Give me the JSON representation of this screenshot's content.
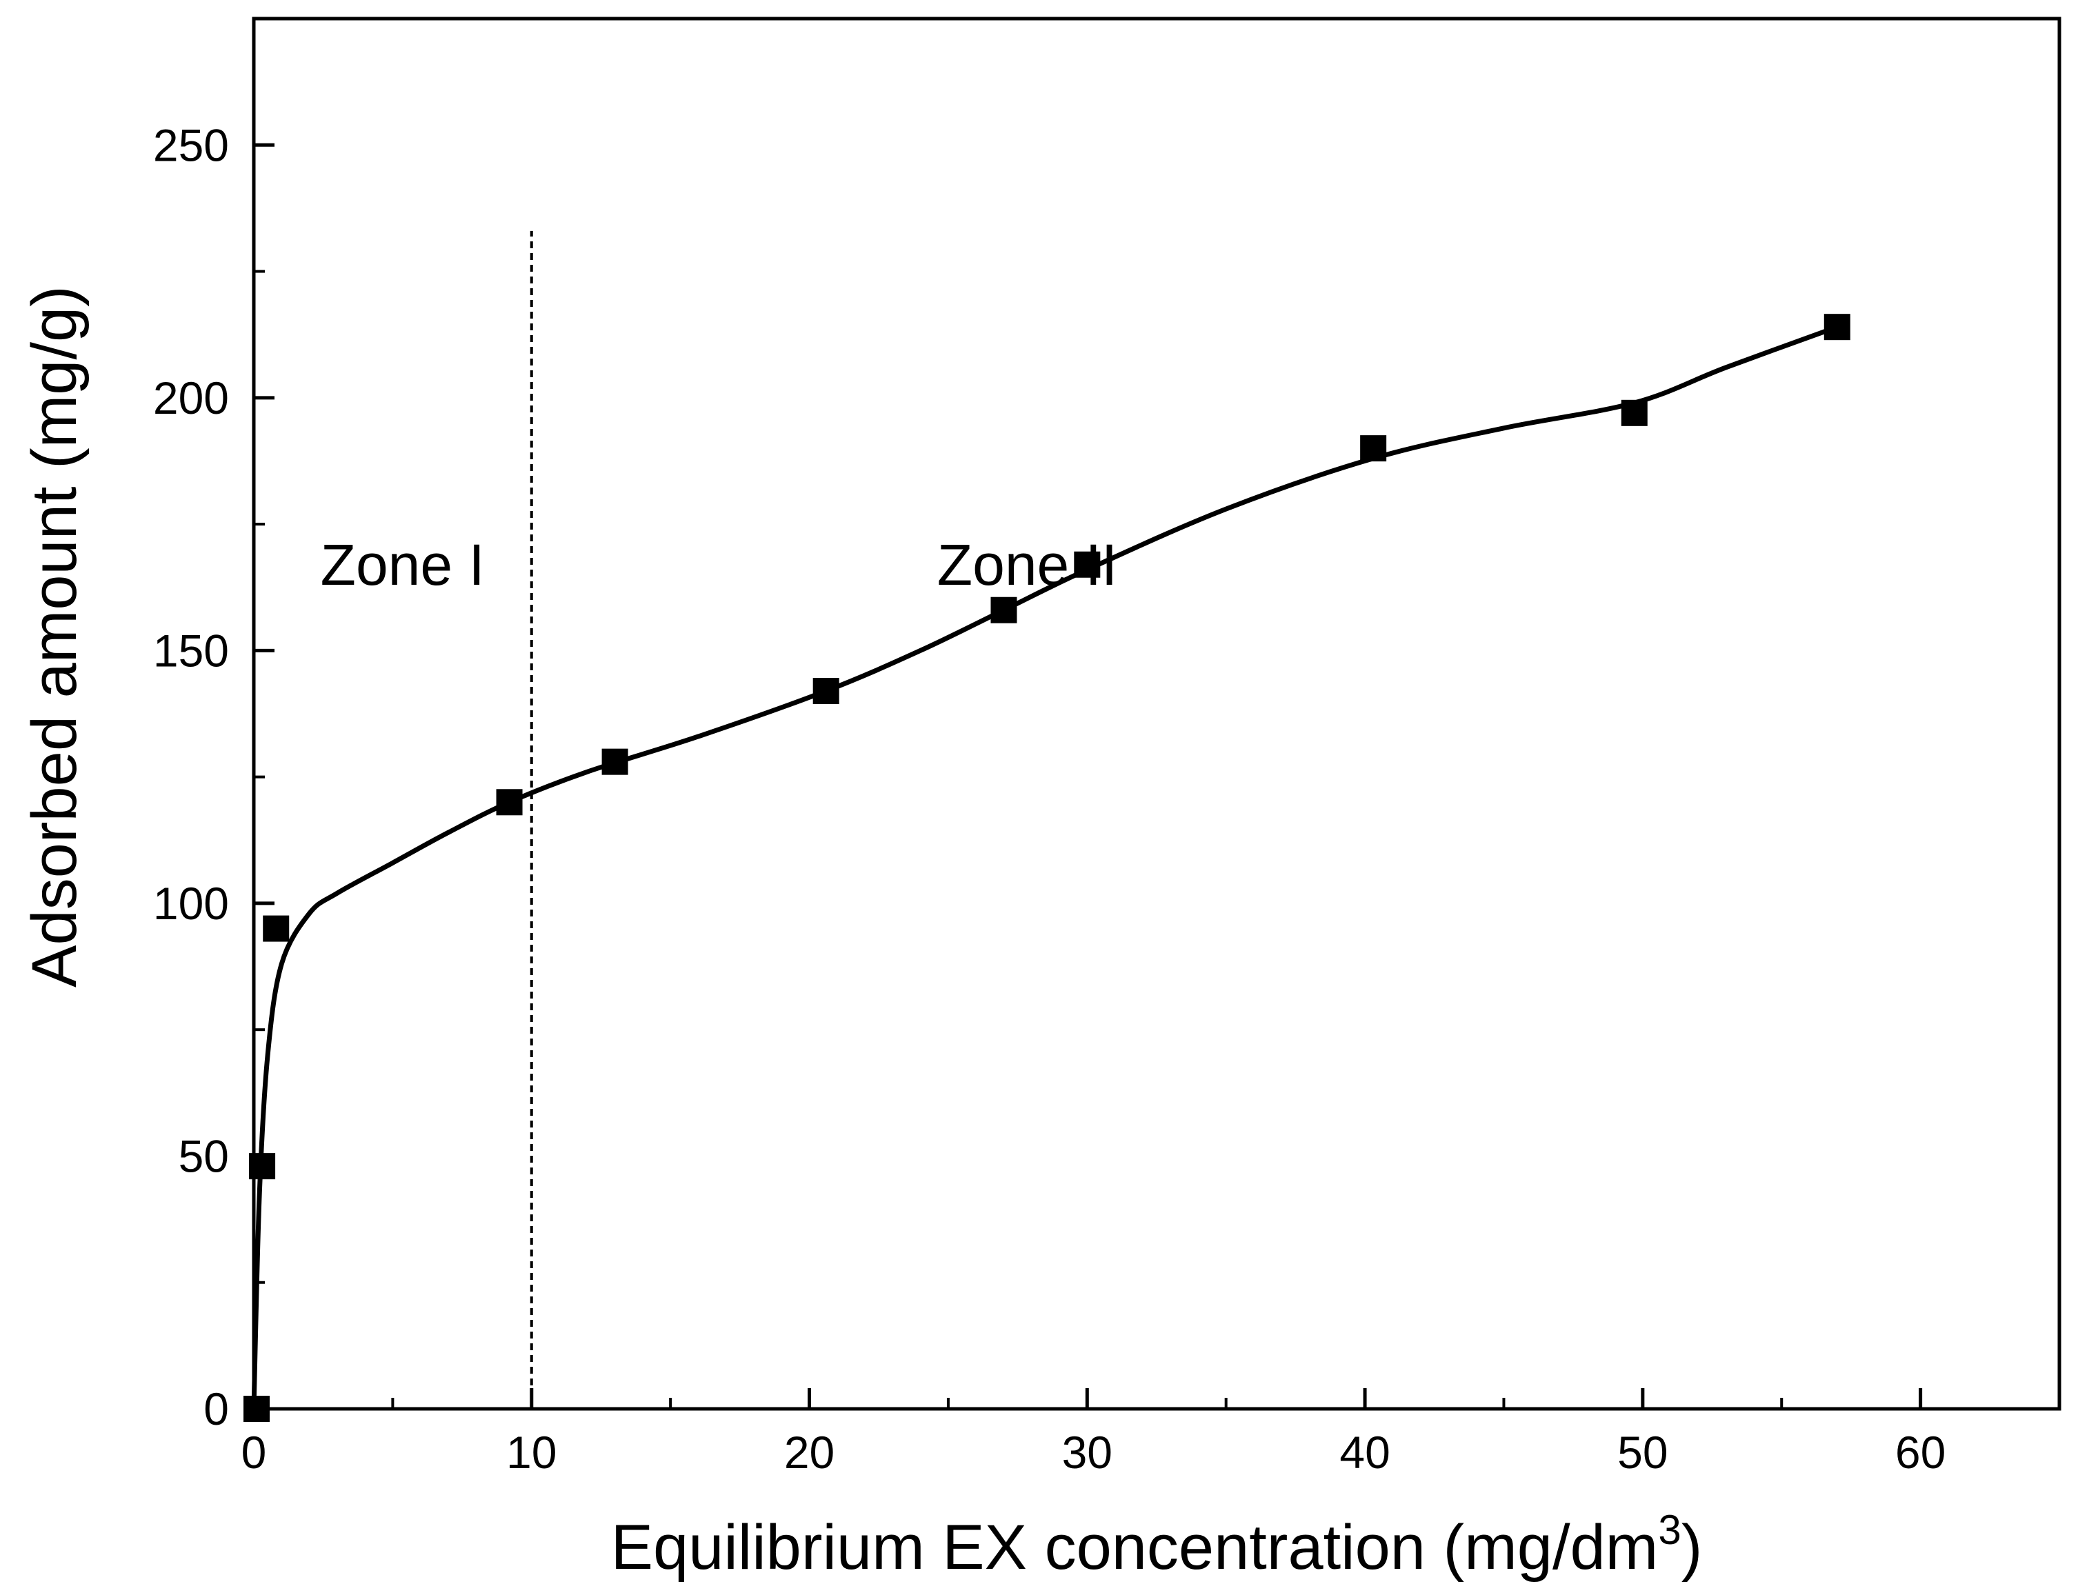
{
  "chart_data": {
    "type": "scatter",
    "title": "",
    "xlabel": "Equilibrium EX concentration (mg/dm",
    "xlabel_sup": "3",
    "xlabel_tail": ")",
    "ylabel": "Adsorbed amount (mg/g)",
    "xlim": [
      0,
      65
    ],
    "ylim": [
      0,
      275
    ],
    "x_ticks": [
      0,
      10,
      20,
      30,
      40,
      50,
      60
    ],
    "x_tick_labels": [
      "0",
      "10",
      "20",
      "30",
      "40",
      "50",
      "60"
    ],
    "x_minor_ticks": [
      5,
      15,
      25,
      35,
      45,
      55
    ],
    "y_ticks": [
      0,
      50,
      100,
      150,
      200,
      250
    ],
    "y_tick_labels": [
      "0",
      "50",
      "100",
      "150",
      "200",
      "250"
    ],
    "y_minor_ticks": [
      25,
      75,
      125,
      175,
      225
    ],
    "grid": false,
    "series": [
      {
        "marker": "square",
        "x": [
          0.1,
          0.3,
          0.8,
          9.2,
          13.0,
          20.6,
          27.0,
          30.0,
          40.3,
          49.7,
          57.0
        ],
        "y": [
          0,
          48,
          95,
          120,
          128,
          142,
          158,
          167,
          190,
          197,
          214
        ]
      }
    ],
    "fit_curve": {
      "x": [
        0,
        0.2,
        0.5,
        1.0,
        2.0,
        3.0,
        5.0,
        7.0,
        9.2,
        12.0,
        16.0,
        20.6,
        24.0,
        27.0,
        30.0,
        35.0,
        40.3,
        45.0,
        49.7,
        53.0,
        57.0
      ],
      "y": [
        0,
        42,
        70,
        88,
        98,
        102,
        108,
        114,
        120,
        126,
        133,
        142,
        150,
        158,
        166,
        178,
        188,
        194,
        199,
        206,
        214
      ]
    },
    "reference_line": {
      "x": 10,
      "ymax": 233
    },
    "annotations": [
      {
        "text": "Zone I",
        "x": 2.4,
        "y": 163
      },
      {
        "text": "Zone II",
        "x": 24.6,
        "y": 163
      }
    ]
  }
}
